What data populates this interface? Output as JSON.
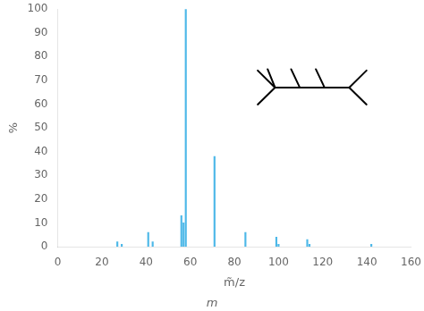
{
  "chart_data": {
    "type": "bar",
    "x": [
      27,
      29,
      41,
      43,
      56,
      57,
      58,
      71,
      85,
      99,
      100,
      113,
      114,
      142
    ],
    "values": [
      2,
      1,
      6,
      2,
      13,
      10,
      100,
      38,
      6,
      4,
      1,
      3,
      1,
      1
    ],
    "color": "#4db8e8",
    "x_label": "m̃/z",
    "y_label": "%",
    "xlim": [
      0,
      160
    ],
    "ylim": [
      0,
      100
    ],
    "xticks": [
      0,
      20,
      40,
      60,
      80,
      100,
      120,
      140,
      160
    ],
    "yticks": [
      0,
      10,
      20,
      30,
      40,
      50,
      60,
      70,
      80,
      90,
      100
    ],
    "grid": false,
    "annotations": [
      {
        "text": "m"
      }
    ]
  }
}
